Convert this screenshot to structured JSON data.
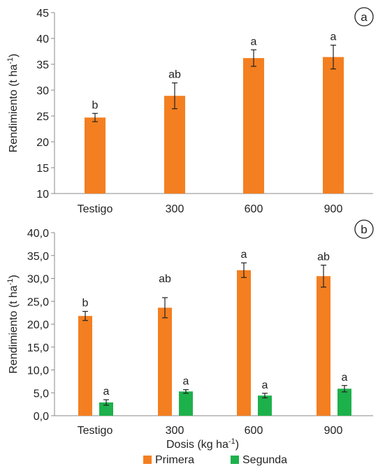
{
  "chart_data": [
    {
      "type": "bar",
      "panel_label": "a",
      "ylabel": "Rendimiento  (t ha",
      "ylabel_sup": "-1",
      "ylabel_close": ")",
      "xlabel": "",
      "categories": [
        "Testigo",
        "300",
        "600",
        "900"
      ],
      "ylim": [
        10,
        45
      ],
      "yticks": [
        10,
        15,
        20,
        25,
        30,
        35,
        40,
        45
      ],
      "ytick_labels": [
        "10",
        "15",
        "20",
        "25",
        "30",
        "35",
        "40",
        "45"
      ],
      "grid": false,
      "legend": "none",
      "series": [
        {
          "color": "#F47F20",
          "values": [
            24.7,
            28.9,
            36.2,
            36.4
          ],
          "errors": [
            0.8,
            2.5,
            1.6,
            2.3
          ],
          "letters": [
            "b",
            "ab",
            "a",
            "a"
          ]
        }
      ]
    },
    {
      "type": "bar",
      "panel_label": "b",
      "ylabel": "Rendimiento  (t ha",
      "ylabel_sup": "-1",
      "ylabel_close": ")",
      "xlabel": "Dosis (kg ha",
      "xlabel_sup": "-1",
      "xlabel_close": ")",
      "categories": [
        "Testigo",
        "300",
        "600",
        "900"
      ],
      "ylim": [
        0,
        40
      ],
      "yticks": [
        0,
        5,
        10,
        15,
        20,
        25,
        30,
        35,
        40
      ],
      "ytick_labels": [
        "0,0",
        "5,0",
        "10,0",
        "15,0",
        "20,0",
        "25,0",
        "30,0",
        "35,0",
        "40,0"
      ],
      "grid": false,
      "legend": "bottom",
      "series": [
        {
          "name": "Primera",
          "color": "#F47F20",
          "values": [
            21.8,
            23.6,
            31.8,
            30.5
          ],
          "errors": [
            1.0,
            2.2,
            1.6,
            2.4
          ],
          "letters": [
            "b",
            "ab",
            "a",
            "ab"
          ]
        },
        {
          "name": "Segunda",
          "color": "#1DB14B",
          "values": [
            2.9,
            5.3,
            4.4,
            5.9
          ],
          "errors": [
            0.6,
            0.4,
            0.5,
            0.7
          ],
          "letters": [
            "a",
            "a",
            "a",
            "a"
          ]
        }
      ]
    }
  ]
}
